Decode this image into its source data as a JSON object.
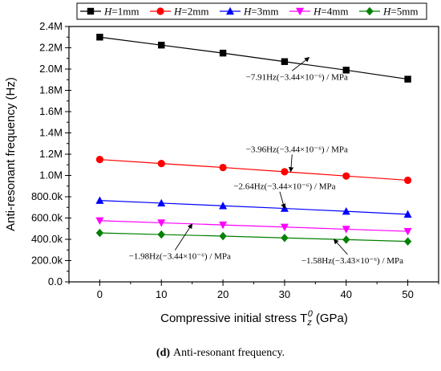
{
  "chart_data": {
    "type": "line",
    "caption_label": "(d)",
    "caption_text": "Anti-resonant frequency.",
    "xlabel": "Compressive initial stress T",
    "xlabel_sub": "z",
    "xlabel_sup": "0",
    "xlabel_unit": "(GPa)",
    "ylabel": "Anti-resonant frequency (Hz)",
    "xlim": [
      -5,
      55
    ],
    "ylim": [
      0,
      2400000
    ],
    "x_ticks": [
      0,
      10,
      20,
      30,
      40,
      50
    ],
    "x_tick_labels": [
      "0",
      "10",
      "20",
      "30",
      "40",
      "50"
    ],
    "y_ticks": [
      0,
      200000,
      400000,
      600000,
      800000,
      1000000,
      1200000,
      1400000,
      1600000,
      1800000,
      2000000,
      2200000,
      2400000
    ],
    "y_tick_labels": [
      "0.0",
      "200.0k",
      "400.0k",
      "600.0k",
      "800.0k",
      "1.0M",
      "1.2M",
      "1.4M",
      "1.6M",
      "1.8M",
      "2.0M",
      "2.2M",
      "2.4M"
    ],
    "legend_position": "top",
    "x": [
      0,
      10,
      20,
      30,
      40,
      50
    ],
    "series": [
      {
        "name": "H=1mm",
        "var": "H",
        "rest": "=1mm",
        "color": "#000000",
        "marker": "square",
        "values": [
          2300000,
          2225000,
          2150000,
          2070000,
          1990000,
          1905000
        ]
      },
      {
        "name": "H=2mm",
        "var": "H",
        "rest": "=2mm",
        "color": "#ff0000",
        "marker": "circle",
        "values": [
          1150000,
          1112000,
          1075000,
          1035000,
          995000,
          955000
        ]
      },
      {
        "name": "H=3mm",
        "var": "H",
        "rest": "=3mm",
        "color": "#0000ff",
        "marker": "triangle-up",
        "values": [
          765000,
          740000,
          715000,
          690000,
          663000,
          635000
        ]
      },
      {
        "name": "H=4mm",
        "var": "H",
        "rest": "=4mm",
        "color": "#ff00ff",
        "marker": "triangle-down",
        "values": [
          575000,
          555000,
          535000,
          515000,
          495000,
          475000
        ]
      },
      {
        "name": "H=5mm",
        "var": "H",
        "rest": "=5mm",
        "color": "#008000",
        "marker": "diamond",
        "values": [
          460000,
          445000,
          430000,
          413000,
          397000,
          380000
        ]
      }
    ],
    "annotations": [
      {
        "text": "−7.91Hz(−3.44×10⁻⁶) / MPa",
        "x": 34,
        "y": 2110000,
        "tx": 32,
        "ty": 1900000
      },
      {
        "text": "−3.96Hz(−3.44×10⁻⁶) / MPa",
        "x": 31,
        "y": 1035000,
        "tx": 32,
        "ty": 1220000
      },
      {
        "text": "−2.64Hz(−3.44×10⁻⁶) / MPa",
        "x": 30,
        "y": 690000,
        "tx": 30,
        "ty": 870000
      },
      {
        "text": "−1.98Hz(−3.44×10⁻⁶) / MPa",
        "x": 15,
        "y": 545000,
        "tx": 13,
        "ty": 215000
      },
      {
        "text": "−1.58Hz(−3.43×10⁻⁶) / MPa",
        "x": 38,
        "y": 400000,
        "tx": 41,
        "ty": 175000
      }
    ]
  }
}
